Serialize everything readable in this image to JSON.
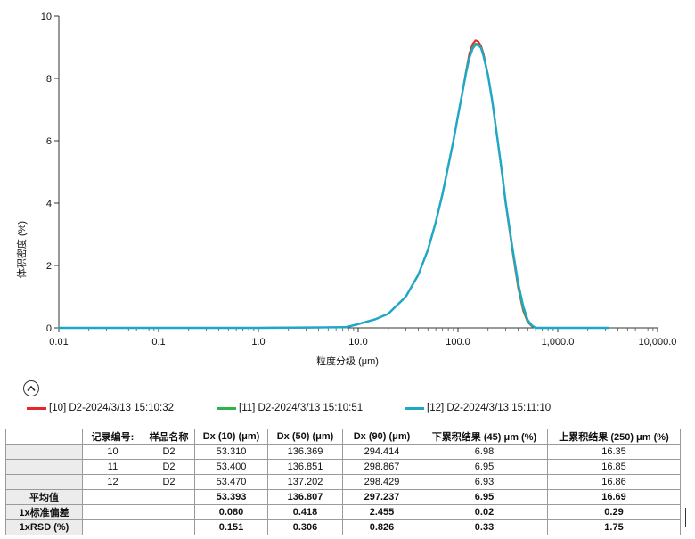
{
  "chart_data": {
    "type": "line",
    "xlabel": "粒度分级 (μm)",
    "ylabel": "体积密度 (%)",
    "xscale": "log",
    "xlim": [
      0.01,
      10000
    ],
    "ylim": [
      0,
      10
    ],
    "x_ticks": [
      "0.01",
      "0.1",
      "1.0",
      "10.0",
      "100.0",
      "1,000.0",
      "10,000.0"
    ],
    "x_tick_values": [
      0.01,
      0.1,
      1,
      10,
      100,
      1000,
      10000
    ],
    "y_ticks": [
      "0",
      "2",
      "4",
      "6",
      "8",
      "10"
    ],
    "y_tick_values": [
      0,
      2,
      4,
      6,
      8,
      10
    ],
    "grid": false,
    "legend_position": "bottom",
    "series": [
      {
        "name": "[10] D2-2024/3/13 15:10:32",
        "color": "#e5262d",
        "x": [
          0.01,
          1,
          7.5,
          10,
          15,
          20,
          30,
          40,
          50,
          60,
          70,
          80,
          90,
          100,
          110,
          120,
          130,
          140,
          150,
          160,
          170,
          180,
          200,
          220,
          250,
          280,
          300,
          350,
          400,
          450,
          500,
          550,
          600,
          3200
        ],
        "y": [
          0,
          0,
          0.02,
          0.12,
          0.28,
          0.45,
          1.0,
          1.7,
          2.5,
          3.4,
          4.3,
          5.2,
          6.0,
          6.8,
          7.5,
          8.2,
          8.8,
          9.1,
          9.22,
          9.18,
          9.05,
          8.8,
          8.1,
          7.3,
          6.0,
          4.8,
          4.0,
          2.5,
          1.3,
          0.55,
          0.18,
          0.05,
          0,
          0
        ]
      },
      {
        "name": "[11] D2-2024/3/13 15:10:51",
        "color": "#2db34a",
        "x": [
          0.01,
          1,
          7.5,
          10,
          15,
          20,
          30,
          40,
          50,
          60,
          70,
          80,
          90,
          100,
          110,
          120,
          130,
          140,
          150,
          160,
          170,
          180,
          200,
          220,
          250,
          280,
          300,
          350,
          400,
          450,
          500,
          550,
          600,
          3200
        ],
        "y": [
          0,
          0,
          0.02,
          0.12,
          0.28,
          0.45,
          1.0,
          1.7,
          2.5,
          3.4,
          4.3,
          5.2,
          6.0,
          6.8,
          7.5,
          8.2,
          8.7,
          9.0,
          9.12,
          9.1,
          9.0,
          8.75,
          8.1,
          7.3,
          6.0,
          4.8,
          4.0,
          2.55,
          1.35,
          0.6,
          0.2,
          0.06,
          0,
          0
        ]
      },
      {
        "name": "[12] D2-2024/3/13 15:11:10",
        "color": "#1ea8c8",
        "x": [
          0.01,
          1,
          7.5,
          10,
          15,
          20,
          30,
          40,
          50,
          60,
          70,
          80,
          90,
          100,
          110,
          120,
          130,
          140,
          150,
          160,
          170,
          180,
          200,
          220,
          250,
          280,
          300,
          350,
          400,
          450,
          500,
          550,
          600,
          3200
        ],
        "y": [
          0,
          0,
          0.02,
          0.12,
          0.28,
          0.45,
          1.0,
          1.7,
          2.5,
          3.4,
          4.3,
          5.2,
          6.0,
          6.8,
          7.5,
          8.15,
          8.65,
          8.95,
          9.08,
          9.06,
          8.98,
          8.72,
          8.1,
          7.3,
          6.0,
          4.85,
          4.05,
          2.6,
          1.45,
          0.7,
          0.25,
          0.08,
          0,
          0
        ]
      }
    ]
  },
  "table": {
    "headers": [
      "",
      "记录编号:",
      "样品名称",
      "Dx (10) (μm)",
      "Dx (50) (μm)",
      "Dx (90) (μm)",
      "下累积结果 (45) μm (%)",
      "上累积结果 (250) μm (%)"
    ],
    "rows": [
      [
        "",
        "10",
        "D2",
        "53.310",
        "136.369",
        "294.414",
        "6.98",
        "16.35"
      ],
      [
        "",
        "11",
        "D2",
        "53.400",
        "136.851",
        "298.867",
        "6.95",
        "16.85"
      ],
      [
        "",
        "12",
        "D2",
        "53.470",
        "137.202",
        "298.429",
        "6.93",
        "16.86"
      ],
      [
        "平均值",
        "",
        "",
        "53.393",
        "136.807",
        "297.237",
        "6.95",
        "16.69"
      ],
      [
        "1x标准偏差",
        "",
        "",
        "0.080",
        "0.418",
        "2.455",
        "0.02",
        "0.29"
      ],
      [
        "1xRSD  (%)",
        "",
        "",
        "0.151",
        "0.306",
        "0.826",
        "0.33",
        "1.75"
      ]
    ]
  },
  "icons": {
    "collapse": "chevron-up-circle-icon"
  }
}
